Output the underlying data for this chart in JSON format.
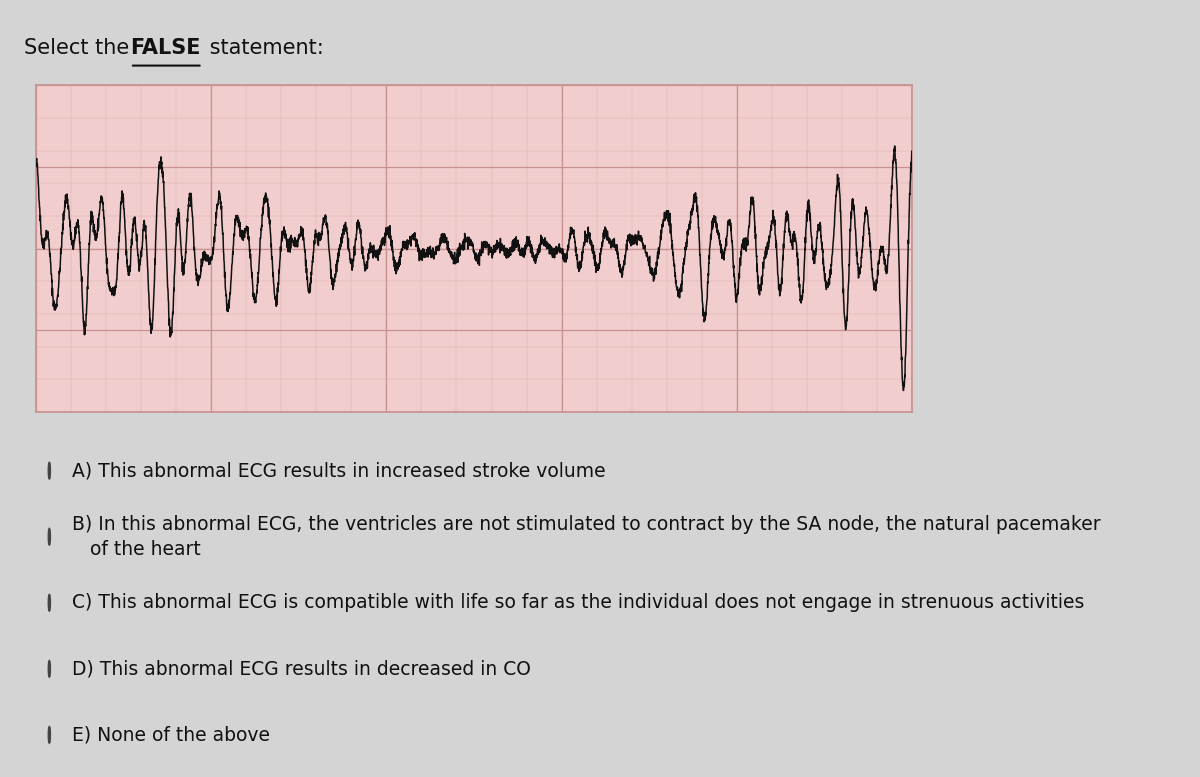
{
  "title_plain": "Select the ",
  "title_bold_underline": "FALSE",
  "title_rest": " statement:",
  "bg_color": "#d4d4d4",
  "ecg_bg_color": "#f2cdcd",
  "ecg_grid_major_color": "#c99090",
  "ecg_grid_minor_color": "#dbb0b0",
  "ecg_line_color": "#111111",
  "options": [
    "A) This abnormal ECG results in increased stroke volume",
    "B) In this abnormal ECG, the ventricles are not stimulated to contract by the SA node, the natural pacemaker\n   of the heart",
    "C) This abnormal ECG is compatible with life so far as the individual does not engage in strenuous activities",
    "D) This abnormal ECG results in decreased in CO",
    "E) None of the above"
  ],
  "option_fontsize": 13.5,
  "title_fontsize": 15,
  "separator_color": "#b0b0b0",
  "text_color": "#111111",
  "circle_color": "#444444"
}
